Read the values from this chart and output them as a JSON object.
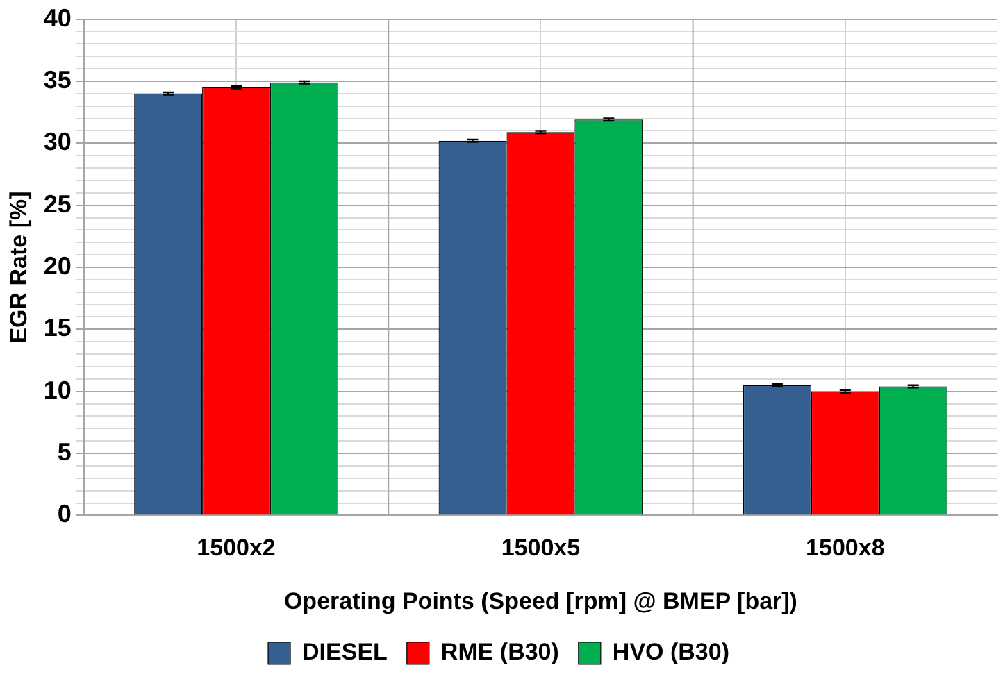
{
  "chart_data": {
    "type": "bar",
    "xlabel": "Operating Points (Speed [rpm] @ BMEP [bar])",
    "ylabel": "EGR Rate [%]",
    "categories": [
      "1500x2",
      "1500x5",
      "1500x8"
    ],
    "series": [
      {
        "name": "DIESEL",
        "color": "#365f91",
        "values": [
          34.0,
          30.2,
          10.5
        ],
        "errors": [
          0.1,
          0.1,
          0.1
        ]
      },
      {
        "name": "RME (B30)",
        "color": "#ff0000",
        "values": [
          34.5,
          30.9,
          10.0
        ],
        "errors": [
          0.1,
          0.1,
          0.1
        ]
      },
      {
        "name": "HVO (B30)",
        "color": "#00b050",
        "values": [
          34.9,
          31.9,
          10.4
        ],
        "errors": [
          0.1,
          0.1,
          0.1
        ]
      }
    ],
    "ylim": [
      0,
      40
    ],
    "yticks": [
      0,
      {
        "value": 1,
        "label": null
      },
      {
        "value": 2,
        "label": null
      },
      {
        "value": 3,
        "label": null
      },
      {
        "value": 4,
        "label": null
      },
      5,
      {
        "value": 6,
        "label": null
      },
      {
        "value": 7,
        "label": null
      },
      {
        "value": 8,
        "label": null
      },
      {
        "value": 9,
        "label": null
      },
      10,
      {
        "value": 11,
        "label": null
      },
      {
        "value": 12,
        "label": null
      },
      {
        "value": 13,
        "label": null
      },
      {
        "value": 14,
        "label": null
      },
      15,
      {
        "value": 16,
        "label": null
      },
      {
        "value": 17,
        "label": null
      },
      {
        "value": 18,
        "label": null
      },
      {
        "value": 19,
        "label": null
      },
      20,
      {
        "value": 21,
        "label": null
      },
      {
        "value": 22,
        "label": null
      },
      {
        "value": 23,
        "label": null
      },
      {
        "value": 24,
        "label": null
      },
      25,
      {
        "value": 26,
        "label": null
      },
      {
        "value": 27,
        "label": null
      },
      {
        "value": 28,
        "label": null
      },
      {
        "value": 29,
        "label": null
      },
      30,
      {
        "value": 31,
        "label": null
      },
      {
        "value": 32,
        "label": null
      },
      {
        "value": 33,
        "label": null
      },
      {
        "value": 34,
        "label": null
      },
      35,
      {
        "value": 36,
        "label": null
      },
      {
        "value": 37,
        "label": null
      },
      {
        "value": 38,
        "label": null
      },
      {
        "value": 39,
        "label": null
      },
      40
    ],
    "grid": true,
    "legend": "bottom"
  }
}
